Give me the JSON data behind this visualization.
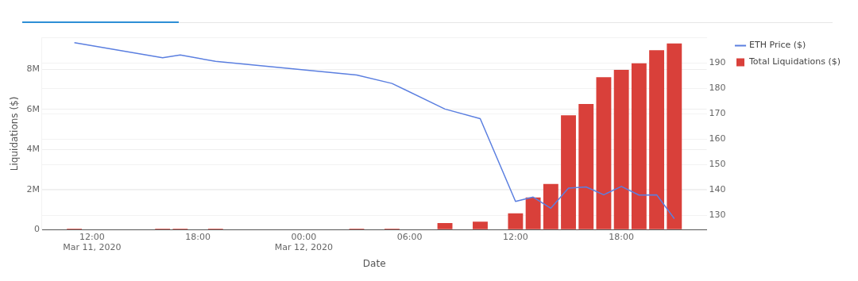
{
  "chart_data": {
    "type": "bar",
    "xlabel": "Date",
    "ylabel": "Liquidations ($)",
    "x": [
      "2020-03-11T11:00",
      "2020-03-11T16:00",
      "2020-03-11T17:00",
      "2020-03-11T19:00",
      "2020-03-12T03:00",
      "2020-03-12T05:00",
      "2020-03-12T08:00",
      "2020-03-12T10:00",
      "2020-03-12T12:00",
      "2020-03-12T13:00",
      "2020-03-12T14:00",
      "2020-03-12T15:00",
      "2020-03-12T16:00",
      "2020-03-12T17:00",
      "2020-03-12T18:00",
      "2020-03-12T19:00",
      "2020-03-12T20:00",
      "2020-03-12T21:00"
    ],
    "series": [
      {
        "name": "ETH Price ($)",
        "type": "line",
        "axis": "y2",
        "color": "#5b7fe0",
        "values": [
          198.1,
          192.1,
          193.2,
          190.7,
          185.3,
          182,
          171.9,
          168.1,
          135.5,
          137.2,
          132.8,
          140.7,
          141.2,
          138.1,
          141.4,
          138,
          138.1,
          128.7
        ]
      },
      {
        "name": "Total Liquidations ($)",
        "color": "#d9403a",
        "values": [
          50000,
          50000,
          50000,
          50000,
          50000,
          50000,
          320000,
          390000,
          810000,
          1600000,
          2280000,
          5700000,
          6270000,
          7600000,
          7970000,
          8300000,
          8950000,
          9290000
        ]
      }
    ],
    "xlim": [
      "2020-03-11T09:10",
      "2020-03-12T22:50"
    ],
    "xticks": [
      {
        "value": "2020-03-11T12:00",
        "label": "12:00\nMar 11, 2020"
      },
      {
        "value": "2020-03-11T18:00",
        "label": "18:00"
      },
      {
        "value": "2020-03-12T00:00",
        "label": "00:00\nMar 12, 2020"
      },
      {
        "value": "2020-03-12T06:00",
        "label": "06:00"
      },
      {
        "value": "2020-03-12T12:00",
        "label": "12:00"
      },
      {
        "value": "2020-03-12T18:00",
        "label": "18:00"
      }
    ],
    "ylim": [
      0,
      9570000
    ],
    "yticks": [
      0,
      {
        "value": 2000000,
        "label": "2M"
      },
      {
        "value": 4000000,
        "label": "4M"
      },
      {
        "value": 6000000,
        "label": "6M"
      },
      {
        "value": 8000000,
        "label": "8M"
      }
    ],
    "y2lim": [
      124.4,
      200
    ],
    "y2ticks": [
      130,
      140,
      150,
      160,
      170,
      180,
      190,
      {
        "value": 200,
        "label": null
      }
    ],
    "grid": "y",
    "legend": "top right",
    "marker": "none"
  }
}
